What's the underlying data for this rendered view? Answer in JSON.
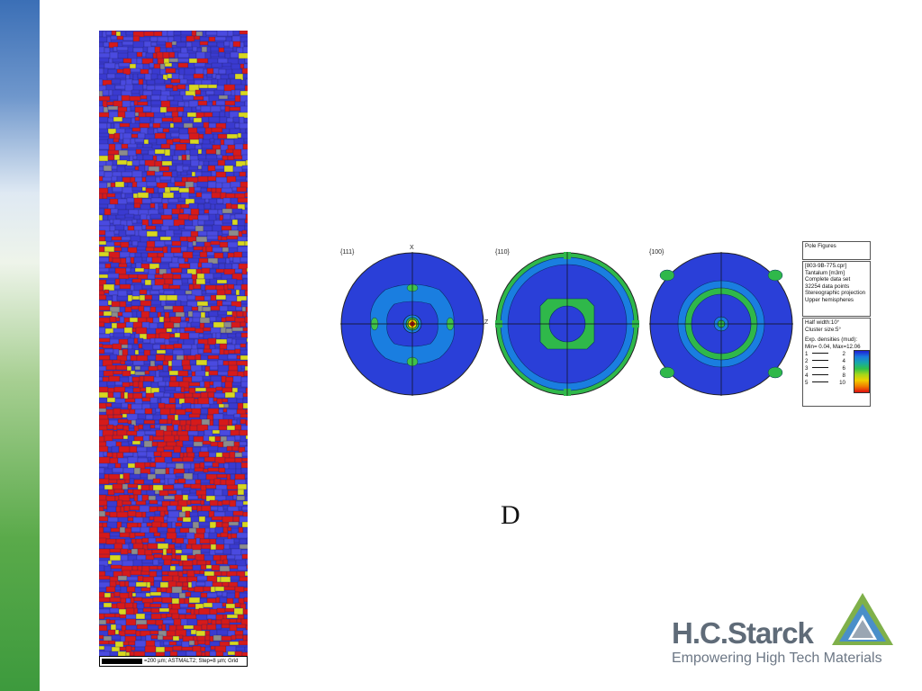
{
  "slide": {
    "letter": "D",
    "scale_text": "=200 µm; ASTMALT2; Step=8 µm; Grid"
  },
  "pole_figures": {
    "axis_x": "X",
    "axis_z": "Z",
    "panels": [
      {
        "label": "{111}"
      },
      {
        "label": "{110}"
      },
      {
        "label": "{100}"
      }
    ]
  },
  "legend": {
    "title": "Pole Figures",
    "info_lines": [
      "[803-9B-775.cpr]",
      "Tantalum [m3m]",
      "Complete data set",
      "32254 data points",
      "Stereographic projection",
      "Upper hemispheres"
    ],
    "half_width": "Half width:10°",
    "cluster_size": "Cluster size:5°",
    "densities_title": "Exp. densities (mud):",
    "min_max": "Min= 0.04, Max=12.06",
    "contours": [
      {
        "level": "1",
        "value": "2"
      },
      {
        "level": "2",
        "value": "4"
      },
      {
        "level": "3",
        "value": "6"
      },
      {
        "level": "4",
        "value": "8"
      },
      {
        "level": "5",
        "value": "10"
      }
    ],
    "scale_colors": [
      "#1e1ed2",
      "#1a7ae0",
      "#17a8a8",
      "#2fc24a",
      "#a6d619",
      "#f0d000",
      "#f07a00",
      "#e01010"
    ]
  },
  "logo": {
    "name": "H.C.Starck",
    "tagline": "Empowering High Tech Materials",
    "colors": {
      "triangle_green": "#7fb04a",
      "triangle_blue": "#4a8fc9",
      "triangle_gray": "#9aa6b3"
    }
  },
  "colors": {
    "map_blue": "#3a3ad0",
    "map_red": "#d61a1a",
    "map_yellow": "#d8d820",
    "map_gray": "#8c8c8c"
  }
}
